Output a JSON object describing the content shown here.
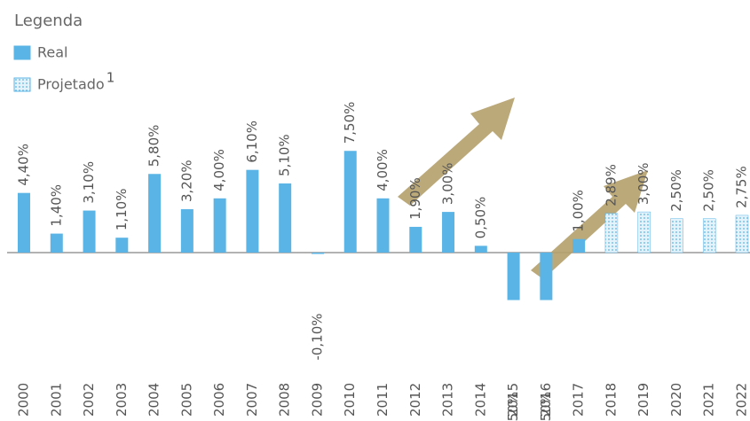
{
  "chart_data": {
    "type": "bar",
    "legend_title": "Legenda",
    "categories": [
      "2000",
      "2001",
      "2002",
      "2003",
      "2004",
      "2005",
      "2006",
      "2007",
      "2008",
      "2009",
      "2010",
      "2011",
      "2012",
      "2013",
      "2014",
      "2015",
      "2016",
      "2017",
      "2018",
      "2019",
      "2020",
      "2021",
      "2022"
    ],
    "series": [
      {
        "name": "Real",
        "color": "#5ab4e5",
        "values": [
          4.4,
          1.4,
          3.1,
          1.1,
          5.8,
          3.2,
          4.0,
          6.1,
          5.1,
          -0.1,
          7.5,
          4.0,
          1.9,
          3.0,
          0.5,
          -3.5,
          -3.5,
          1.0,
          null,
          null,
          null,
          null,
          null
        ],
        "value_labels": [
          "4,40%",
          "1,40%",
          "3,10%",
          "1,10%",
          "5,80%",
          "3,20%",
          "4,00%",
          "6,10%",
          "5,10%",
          "-0,10%",
          "7,50%",
          "4,00%",
          "1,90%",
          "3,00%",
          "0,50%",
          "-3,50%",
          "-3,50%",
          "1,00%",
          null,
          null,
          null,
          null,
          null
        ]
      },
      {
        "name": "Projetado",
        "footnote_mark": "1",
        "color": "#5ab4e5",
        "pattern": "dots",
        "values": [
          null,
          null,
          null,
          null,
          null,
          null,
          null,
          null,
          null,
          null,
          null,
          null,
          null,
          null,
          null,
          null,
          null,
          null,
          2.89,
          3.0,
          2.5,
          2.5,
          2.75
        ],
        "value_labels": [
          null,
          null,
          null,
          null,
          null,
          null,
          null,
          null,
          null,
          null,
          null,
          null,
          null,
          null,
          null,
          null,
          null,
          null,
          "2,89%",
          "3,00%",
          "2,50%",
          "2,50%",
          "2,75%"
        ]
      }
    ],
    "legend": "upper left"
  }
}
